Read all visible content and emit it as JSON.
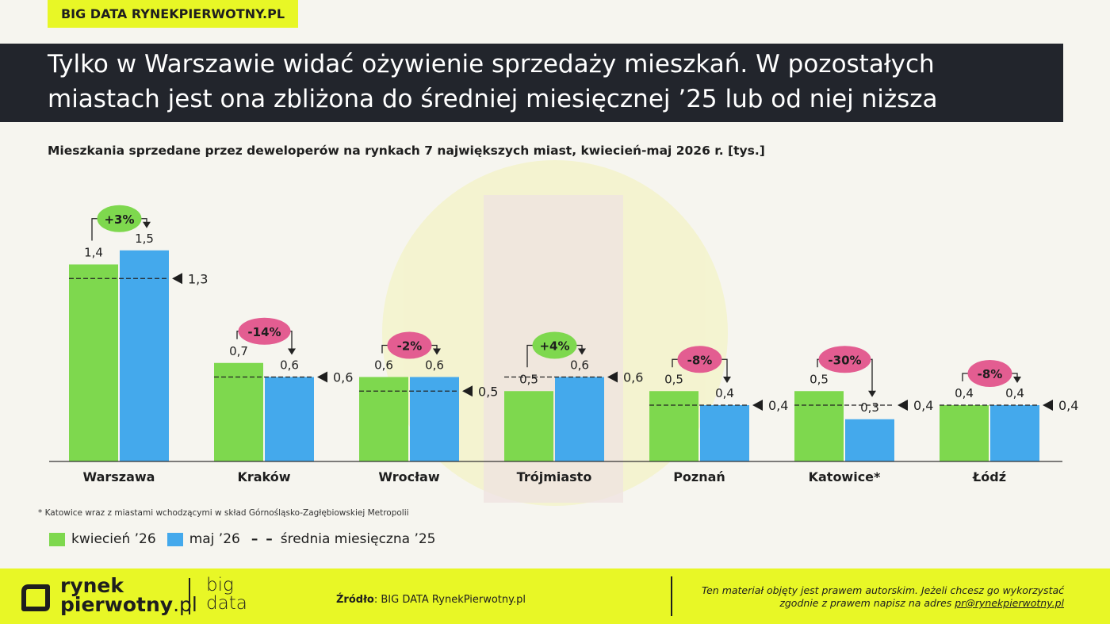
{
  "header": {
    "tag": "BIG DATA RYNEKPIERWOTNY.PL",
    "title_line1": "Tylko w Warszawie widać ożywienie sprzedaży mieszkań. W pozostałych",
    "title_line2": "miastach jest ona zbliżona do średniej miesięcznej ’25 lub od niej niższa",
    "subtitle": "Mieszkania sprzedane przez deweloperów na rynkach 7 największych miast, kwiecień-maj 2026 r. [tys.]"
  },
  "colors": {
    "april": "#7ed84e",
    "may": "#44a9ec",
    "badge_positive": "#7ed84e",
    "badge_negative": "#e35d91",
    "accent": "#e8f726",
    "title_bg": "#22252c"
  },
  "chart_data": {
    "type": "bar",
    "categories": [
      "Warszawa",
      "Kraków",
      "Wrocław",
      "Trójmiasto",
      "Poznań",
      "Katowice*",
      "Łódź"
    ],
    "series": [
      {
        "name": "kwiecień ’26",
        "values": [
          1.4,
          0.7,
          0.6,
          0.5,
          0.5,
          0.5,
          0.4
        ],
        "labels": [
          "1,4",
          "0,7",
          "0,6",
          "0,5",
          "0,5",
          "0,5",
          "0,4"
        ]
      },
      {
        "name": "maj ’26",
        "values": [
          1.5,
          0.6,
          0.6,
          0.6,
          0.4,
          0.3,
          0.4
        ],
        "labels": [
          "1,5",
          "0,6",
          "0,6",
          "0,6",
          "0,4",
          "0,3",
          "0,4"
        ]
      },
      {
        "name": "średnia miesięczna ’25",
        "values": [
          1.3,
          0.6,
          0.5,
          0.6,
          0.4,
          0.4,
          0.4
        ],
        "labels": [
          "1,3",
          "0,6",
          "0,5",
          "0,6",
          "0,4",
          "0,4",
          "0,4"
        ]
      }
    ],
    "changes": [
      "+3%",
      "-14%",
      "-2%",
      "+4%",
      "-8%",
      "-30%",
      "-8%"
    ],
    "ylim": [
      0,
      1.5
    ],
    "grid": false,
    "legend_position": "bottom-left"
  },
  "legend": {
    "april": "kwiecień ’26",
    "may": "maj ’26",
    "avg_symbol": "– –",
    "avg": "średnia miesięczna ’25"
  },
  "note": "* Katowice wraz z miastami wchodzącymi w skład Górnośląsko-Zagłębiowskiej Metropolii",
  "footer": {
    "logo_line1": "rynek",
    "logo_line2": "pierwotny",
    "logo_suffix": ".pl",
    "bigdata_line1": "big",
    "bigdata_line2": "data",
    "source_label": "Źródło",
    "source_value": ": BIG DATA RynekPierwotny.pl",
    "copyright_line1": "Ten materiał objęty jest prawem autorskim. Jeżeli chcesz go wykorzystać",
    "copyright_line2": "zgodnie z prawem napisz na adres ",
    "copyright_email": "pr@rynekpierwotny.pl"
  }
}
